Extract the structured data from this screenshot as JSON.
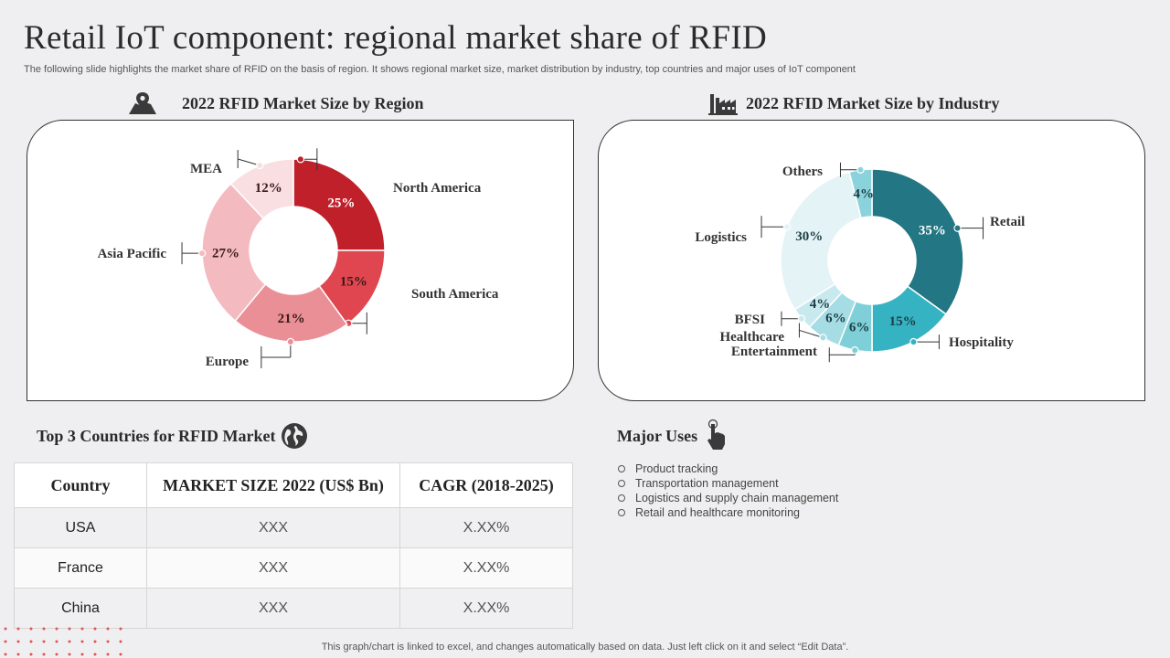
{
  "title": "Retail IoT component: regional market share of RFID",
  "subtitle": "The following slide highlights the market share of RFID on the basis of region. It shows regional market size, market distribution by industry, top countries and major uses of IoT component",
  "region_heading": "2022 RFID Market Size by Region",
  "industry_heading": "2022 RFID Market Size by Industry",
  "countries_heading": "Top 3 Countries for RFID Market",
  "uses_heading": "Major Uses",
  "table": {
    "headers": [
      "Country",
      "MARKET SIZE 2022 (US$ Bn)",
      "CAGR (2018-2025)"
    ],
    "rows": [
      [
        "USA",
        "XXX",
        "X.XX%"
      ],
      [
        "France",
        "XXX",
        "X.XX%"
      ],
      [
        "China",
        "XXX",
        "X.XX%"
      ]
    ]
  },
  "major_uses": [
    "Product tracking",
    "Transportation  management",
    "Logistics and supply chain management",
    "Retail and healthcare  monitoring"
  ],
  "footer": "This graph/chart is linked to excel,  and changes automatically based on data. Just left click on it and select “Edit Data”.",
  "icons": {
    "region": "map-pin-icon",
    "industry": "factory-icon",
    "countries": "globe-icon",
    "uses": "hand-pointer-icon"
  },
  "chart_data": [
    {
      "type": "pie",
      "title": "2022 RFID Market Size by Region",
      "categories": [
        "North America",
        "South America",
        "Europe",
        "Asia Pacific",
        "MEA"
      ],
      "values": [
        25,
        15,
        21,
        27,
        12
      ],
      "labels": [
        "25%",
        "15%",
        "21%",
        "27%",
        "12%"
      ],
      "colors": [
        "#c0202a",
        "#e0464f",
        "#eb8f96",
        "#f3babf",
        "#f9dfe2"
      ]
    },
    {
      "type": "pie",
      "title": "2022 RFID Market Size by Industry",
      "categories": [
        "Retail",
        "Hospitality",
        "Entertainment",
        "Healthcare",
        "BFSI",
        "Logistics",
        "Others"
      ],
      "values": [
        35,
        15,
        6,
        6,
        4,
        30,
        4
      ],
      "labels": [
        "35%",
        "15%",
        "6%",
        "6%",
        "4%",
        "30%",
        "4%"
      ],
      "colors": [
        "#237683",
        "#35b3c2",
        "#7fcfd9",
        "#a6dde4",
        "#c8eaef",
        "#e4f3f6",
        "#8bd3dc"
      ]
    }
  ]
}
